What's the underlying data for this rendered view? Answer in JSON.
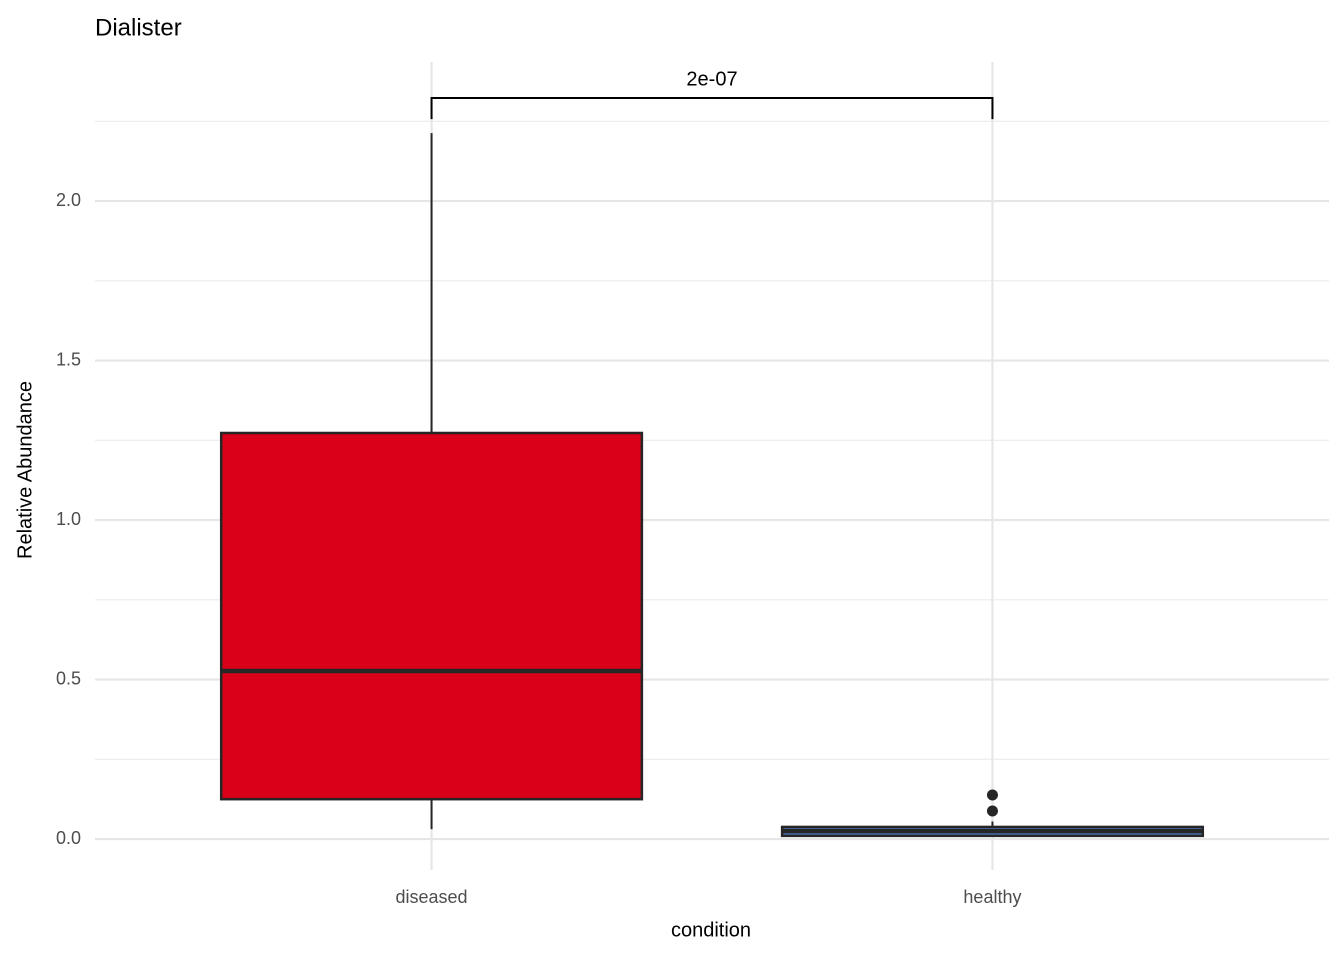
{
  "chart_data": {
    "type": "box",
    "title": "Dialister",
    "x_label": "condition",
    "y_label": "Relative Abundance",
    "categories": [
      "diseased",
      "healthy"
    ],
    "boxes": [
      {
        "whisker_low": 0.031,
        "q1": 0.125,
        "median": 0.527,
        "q3": 1.273,
        "whisker_high": 2.213,
        "outliers": [],
        "color": "#da0019"
      },
      {
        "whisker_low": 0.01,
        "q1": 0.01,
        "median": 0.025,
        "q3": 0.038,
        "whisker_high": 0.055,
        "outliers": [
          0.088,
          0.138
        ],
        "color": "#4a7dbf"
      }
    ],
    "ylim": [
      -0.097,
      2.436
    ],
    "yticks": [
      {
        "value": 0,
        "label": "0.0"
      },
      0.5,
      {
        "value": 1,
        "label": "1.0"
      },
      1.5,
      {
        "value": 2,
        "label": "2.0"
      }
    ],
    "minor_yticks": [
      0.25,
      0.75,
      1.25,
      1.75,
      2.25
    ],
    "grid": true,
    "annotation": {
      "text": "2e-07",
      "y": 2.323,
      "tip": 2.257
    }
  }
}
